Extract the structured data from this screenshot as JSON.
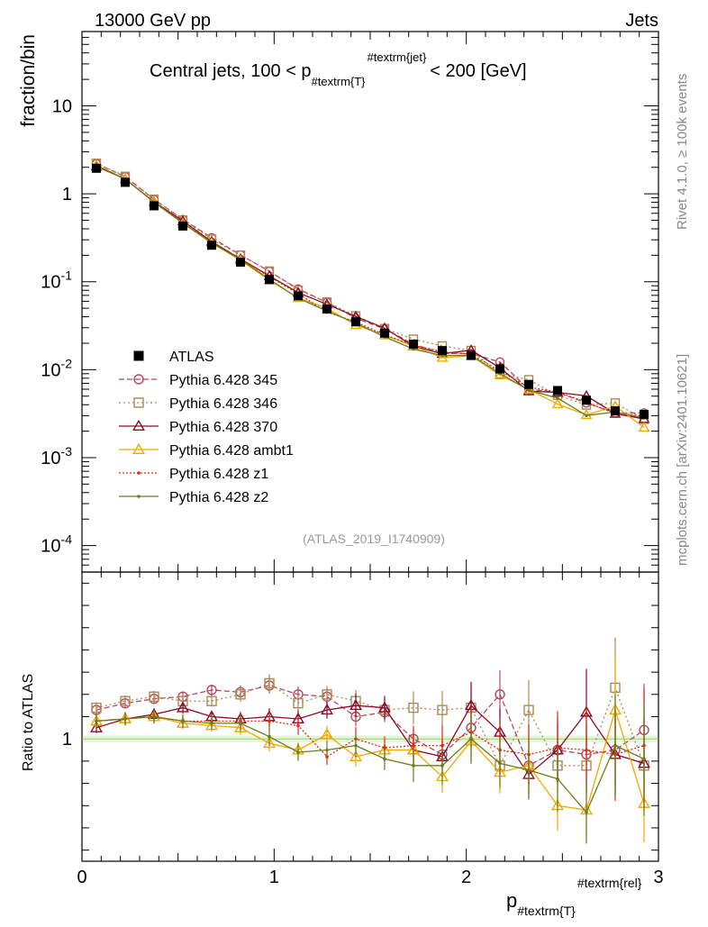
{
  "header": {
    "left": "13000 GeV pp",
    "right": "Jets"
  },
  "side_text": {
    "top": "Rivet 4.1.0, ≥ 100k events",
    "bottom": "mcplots.cern.ch [arXiv:2401.10621]"
  },
  "watermark": "(ATLAS_2019_I1740909)",
  "chart_data": {
    "type": "line",
    "title": {
      "main": "Central jets, 100 < p",
      "sub": "#textrm{T}",
      "sup": "#textrm{jet}",
      "tail": "< 200 [GeV]"
    },
    "xlabel": {
      "main": "p",
      "sub": "#textrm{T}",
      "sup": "#textrm{rel}"
    },
    "ylabel_top": "fraction/bin",
    "ylabel_bottom": "Ratio to ATLAS",
    "xlim": [
      0,
      3
    ],
    "ylim_top": [
      5e-05,
      70
    ],
    "ylim_bottom": [
      0.45,
      1.75
    ],
    "x_ticks": [
      "0",
      "1",
      "2",
      "3"
    ],
    "y_ticks_top": [
      {
        "base": "10",
        "exp": "-4"
      },
      {
        "base": "10",
        "exp": "-3"
      },
      {
        "base": "10",
        "exp": "-2"
      },
      {
        "base": "10",
        "exp": "-1"
      },
      {
        "base": "1",
        "exp": ""
      },
      {
        "base": "10",
        "exp": ""
      }
    ],
    "y_tick_bottom": "1",
    "x": [
      0.075,
      0.225,
      0.375,
      0.525,
      0.675,
      0.825,
      0.975,
      1.125,
      1.275,
      1.425,
      1.575,
      1.725,
      1.875,
      2.025,
      2.175,
      2.325,
      2.475,
      2.625,
      2.775,
      2.925
    ],
    "data": {
      "name": "ATLAS",
      "values": [
        1.95,
        1.35,
        0.73,
        0.43,
        0.26,
        0.167,
        0.106,
        0.069,
        0.049,
        0.035,
        0.026,
        0.0195,
        0.0165,
        0.0145,
        0.0102,
        0.0068,
        0.0058,
        0.0045,
        0.0034,
        0.0031
      ]
    },
    "series": [
      {
        "name": "Pythia 6.428 345",
        "color": "#b5485e",
        "dash": "6,3",
        "marker": "circle-open",
        "ratio": [
          1.13,
          1.16,
          1.18,
          1.19,
          1.22,
          1.21,
          1.24,
          1.2,
          1.19,
          1.1,
          1.12,
          1.0,
          0.93,
          1.05,
          1.2,
          0.88,
          0.95,
          0.93,
          0.95,
          1.04
        ]
      },
      {
        "name": "Pythia 6.428 346",
        "color": "#a88a55",
        "dash": "2,3",
        "marker": "square-open",
        "ratio": [
          1.14,
          1.17,
          1.19,
          1.17,
          1.17,
          1.2,
          1.25,
          1.16,
          1.2,
          1.17,
          1.13,
          1.14,
          1.13,
          1.14,
          0.88,
          1.13,
          0.88,
          0.88,
          1.23,
          0.88
        ]
      },
      {
        "name": "Pythia 6.428 370",
        "color": "#8b0a26",
        "dash": "",
        "marker": "triangle-open",
        "ratio": [
          1.05,
          1.09,
          1.11,
          1.14,
          1.1,
          1.09,
          1.1,
          1.09,
          1.13,
          1.15,
          1.14,
          0.95,
          0.92,
          1.15,
          1.03,
          0.84,
          0.95,
          1.12,
          0.93,
          0.89
        ]
      },
      {
        "name": "Pythia 6.428 ambt1",
        "color": "#f0a800",
        "dash": "",
        "marker": "triangle-open",
        "ratio": [
          1.08,
          1.09,
          1.1,
          1.07,
          1.06,
          1.05,
          0.98,
          0.95,
          1.02,
          0.92,
          0.95,
          0.95,
          0.83,
          0.99,
          0.85,
          0.88,
          0.7,
          0.68,
          1.13,
          0.71
        ]
      },
      {
        "name": "Pythia 6.428 z1",
        "color": "#dd2a10",
        "dash": "2,2",
        "marker": "dot",
        "ratio": [
          1.08,
          1.09,
          1.1,
          1.08,
          1.08,
          1.08,
          1.08,
          1.06,
          0.92,
          1.0,
          0.96,
          0.97,
          0.97,
          1.03,
          0.95,
          0.93,
          0.96,
          0.95,
          0.93,
          0.97
        ]
      },
      {
        "name": "Pythia 6.428 z2",
        "color": "#6b7d1a",
        "dash": "",
        "marker": "dot",
        "ratio": [
          1.08,
          1.09,
          1.1,
          1.08,
          1.07,
          1.07,
          1.01,
          0.94,
          0.95,
          0.97,
          0.91,
          0.88,
          0.88,
          1.0,
          0.89,
          0.86,
          0.82,
          0.67,
          0.97,
          0.91
        ]
      }
    ]
  }
}
